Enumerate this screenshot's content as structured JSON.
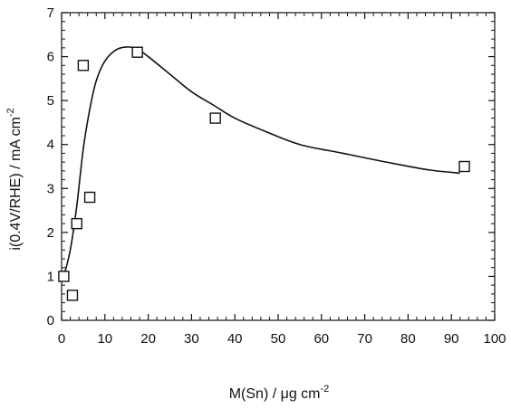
{
  "chart_data": {
    "type": "scatter",
    "title": "",
    "xlabel": "M(Sn) / μg cm",
    "xlabel_sup": "-2",
    "ylabel": "i(0.4V/RHE) / mA cm",
    "ylabel_sup": "-2",
    "xlim": [
      0,
      100
    ],
    "ylim": [
      0,
      7
    ],
    "xticks": [
      0,
      10,
      20,
      30,
      40,
      50,
      60,
      70,
      80,
      90,
      100
    ],
    "yticks": [
      0,
      1,
      2,
      3,
      4,
      5,
      6,
      7
    ],
    "grid": false,
    "legend": "none",
    "series": [
      {
        "marker": "square-open",
        "points": [
          {
            "x": 0.5,
            "y": 1.0
          },
          {
            "x": 2.5,
            "y": 0.57
          },
          {
            "x": 3.5,
            "y": 2.2
          },
          {
            "x": 5.0,
            "y": 5.8
          },
          {
            "x": 6.5,
            "y": 2.8
          },
          {
            "x": 17.5,
            "y": 6.1
          },
          {
            "x": 35.5,
            "y": 4.6
          },
          {
            "x": 93.0,
            "y": 3.5
          }
        ]
      },
      {
        "style": "line",
        "points": [
          {
            "x": 0.5,
            "y": 1.0
          },
          {
            "x": 2.0,
            "y": 1.6
          },
          {
            "x": 3.5,
            "y": 2.6
          },
          {
            "x": 5.0,
            "y": 3.9
          },
          {
            "x": 6.5,
            "y": 4.8
          },
          {
            "x": 8.0,
            "y": 5.45
          },
          {
            "x": 10.0,
            "y": 5.9
          },
          {
            "x": 12.5,
            "y": 6.15
          },
          {
            "x": 15.0,
            "y": 6.22
          },
          {
            "x": 17.5,
            "y": 6.17
          },
          {
            "x": 20.0,
            "y": 6.0
          },
          {
            "x": 25.0,
            "y": 5.6
          },
          {
            "x": 30.0,
            "y": 5.2
          },
          {
            "x": 35.0,
            "y": 4.9
          },
          {
            "x": 40.0,
            "y": 4.6
          },
          {
            "x": 47.0,
            "y": 4.3
          },
          {
            "x": 55.0,
            "y": 4.0
          },
          {
            "x": 65.0,
            "y": 3.8
          },
          {
            "x": 75.0,
            "y": 3.6
          },
          {
            "x": 85.0,
            "y": 3.42
          },
          {
            "x": 92.0,
            "y": 3.35
          }
        ]
      }
    ]
  },
  "colors": {
    "ink": "#111111",
    "background": "#ffffff"
  }
}
